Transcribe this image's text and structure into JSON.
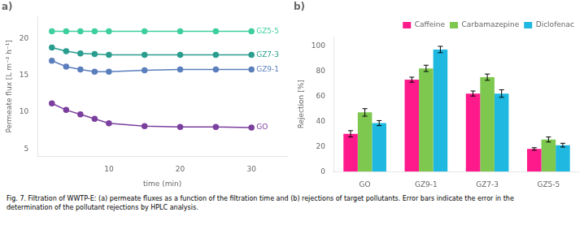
{
  "chart_data": [
    {
      "type": "line",
      "title": "a)",
      "xlabel": "time (min)",
      "ylabel": "Permeate flux [L m⁻² h⁻¹]",
      "x": [
        2,
        4,
        6,
        8,
        10,
        15,
        20,
        25,
        30
      ],
      "series": [
        {
          "name": "GZ5-5",
          "color": "#3ecf9e",
          "values": [
            21.0,
            21.0,
            21.0,
            21.0,
            21.0,
            21.0,
            21.0,
            21.0,
            21.0
          ]
        },
        {
          "name": "GZ7-3",
          "color": "#2a9d8f",
          "values": [
            18.8,
            18.3,
            18.0,
            17.9,
            17.8,
            17.8,
            17.8,
            17.8,
            17.8
          ]
        },
        {
          "name": "GZ9-1",
          "color": "#5b7fbd",
          "values": [
            17.0,
            16.2,
            15.8,
            15.5,
            15.5,
            15.7,
            15.8,
            15.8,
            15.8
          ]
        },
        {
          "name": "GO",
          "color": "#7b3f9e",
          "values": [
            11.2,
            10.3,
            9.7,
            9.1,
            8.5,
            8.1,
            8.0,
            8.0,
            7.9
          ]
        }
      ],
      "xlim": [
        0,
        35
      ],
      "xticks": [
        10,
        20,
        30
      ],
      "ylim": [
        4,
        23
      ],
      "yticks": [
        5,
        10,
        15,
        20
      ],
      "marker": "circle",
      "grid": false
    },
    {
      "type": "bar",
      "title": "b)",
      "ylabel": "Rejection [%]",
      "categories": [
        "GO",
        "GZ9-1",
        "GZ7-3",
        "GZ5-5"
      ],
      "series": [
        {
          "name": "Caffeine",
          "color": "#ff1a8c",
          "values": [
            30,
            73,
            62,
            18
          ],
          "errors": [
            2.5,
            2.0,
            2.0,
            1.0
          ]
        },
        {
          "name": "Carbamazepine",
          "color": "#7ec850",
          "values": [
            47,
            82,
            75,
            25.5
          ],
          "errors": [
            3.0,
            2.5,
            2.5,
            2.0
          ]
        },
        {
          "name": "Diclofenac",
          "color": "#1eb8e0",
          "values": [
            38.5,
            97,
            62,
            21
          ],
          "errors": [
            2.0,
            2.5,
            3.0,
            1.5
          ]
        }
      ],
      "ylim": [
        0,
        107
      ],
      "yticks": [
        0,
        20,
        40,
        60,
        80,
        100
      ],
      "legend": "top-right",
      "grid": false
    }
  ],
  "caption": "Fig. 7. Filtration of WWTP-E: (a) permeate fluxes as a function of the filtration time and (b) rejections of target pollutants. Error bars indicate the error in the\ndetermination of the pollutant rejections by HPLC analysis."
}
